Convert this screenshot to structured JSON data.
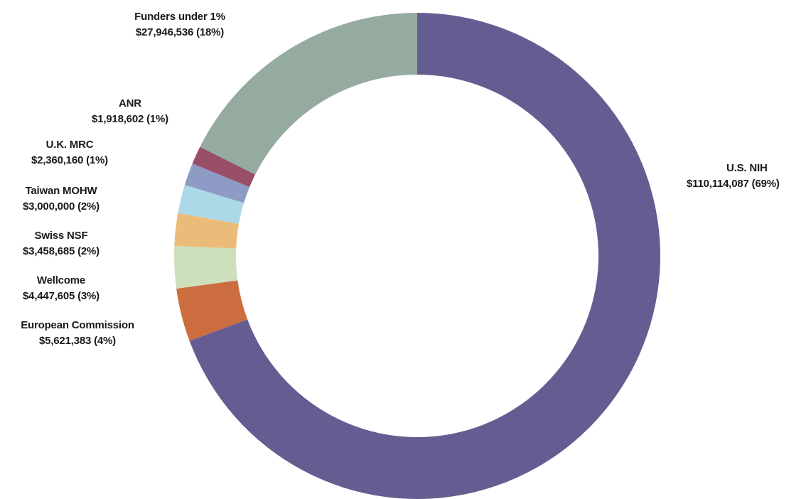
{
  "chart_data": {
    "type": "pie",
    "donut": true,
    "unit": "USD",
    "slices": [
      {
        "name": "U.S. NIH",
        "value": 110114087,
        "value_label": "$110,114,087",
        "percent_label": "(69%)",
        "color": "#655d92"
      },
      {
        "name": "European Commission",
        "value": 5621383,
        "value_label": "$5,621,383",
        "percent_label": "(4%)",
        "color": "#cb6d3f"
      },
      {
        "name": "Wellcome",
        "value": 4447605,
        "value_label": "$4,447,605",
        "percent_label": "(3%)",
        "color": "#cde0bb"
      },
      {
        "name": "Swiss NSF",
        "value": 3458685,
        "value_label": "$3,458,685",
        "percent_label": "(2%)",
        "color": "#ebbc79"
      },
      {
        "name": "Taiwan MOHW",
        "value": 3000000,
        "value_label": "$3,000,000",
        "percent_label": "(2%)",
        "color": "#acd9e8"
      },
      {
        "name": "U.K. MRC",
        "value": 2360160,
        "value_label": "$2,360,160",
        "percent_label": "(1%)",
        "color": "#8e9bc5"
      },
      {
        "name": "ANR",
        "value": 1918602,
        "value_label": "$1,918,602",
        "percent_label": "(1%)",
        "color": "#9a4f69"
      },
      {
        "name": "Funders under 1%",
        "value": 27946536,
        "value_label": "$27,946,536",
        "percent_label": "(18%)",
        "color": "#96aba0"
      }
    ]
  }
}
